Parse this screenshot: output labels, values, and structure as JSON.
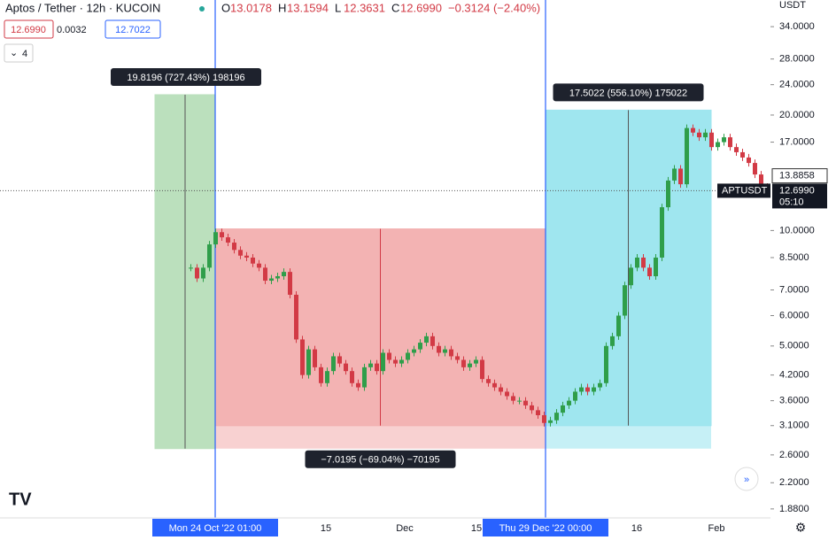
{
  "chart_data": {
    "type": "candlestick",
    "title": "Aptos / Tether · 12h · KUCOIN",
    "ohlc_legend": [
      {
        "key": "O",
        "value": "13.0178"
      },
      {
        "key": "H",
        "value": "13.1594"
      },
      {
        "key": "L",
        "value": "12.3631"
      },
      {
        "key": "C",
        "value": "12.6990"
      }
    ],
    "change": "−0.3124 (−2.40%)",
    "quote_boxes": [
      "12.6990",
      "0.0032",
      "12.7022"
    ],
    "indicator_count": "4",
    "currency": "USDT",
    "y_scale": "log",
    "ylim": [
      1.81,
      39.9
    ],
    "yticks": [
      {
        "value": 34,
        "label": "34.0000"
      },
      {
        "value": 28,
        "label": "28.0000"
      },
      {
        "value": 24,
        "label": "24.0000"
      },
      {
        "value": 20,
        "label": "20.0000"
      },
      {
        "value": 17,
        "label": "17.0000"
      },
      {
        "value": 10,
        "label": "10.0000"
      },
      {
        "value": 8.5,
        "label": "8.5000"
      },
      {
        "value": 7,
        "label": "7.0000"
      },
      {
        "value": 6,
        "label": "6.0000"
      },
      {
        "value": 5,
        "label": "5.0000"
      },
      {
        "value": 4.2,
        "label": "4.2000"
      },
      {
        "value": 3.6,
        "label": "3.6000"
      },
      {
        "value": 3.1,
        "label": "3.1000"
      },
      {
        "value": 2.6,
        "label": "2.6000"
      },
      {
        "value": 2.2,
        "label": "2.2000"
      },
      {
        "value": 1.88,
        "label": "1.8800"
      }
    ],
    "x_labels": [
      "Mon 24 Oct '22  01:00",
      "15",
      "Dec",
      "15",
      "Thu 29 Dec '22  00:00",
      "16",
      "Feb"
    ],
    "up_color": "#2f9e4a",
    "down_color": "#d23a45",
    "series": [
      {
        "name": "APTUSDT",
        "values": [
          8.0,
          7.5,
          8.0,
          9.2,
          9.9,
          9.6,
          9.3,
          8.9,
          8.6,
          8.5,
          8.2,
          8.0,
          7.4,
          7.5,
          7.6,
          7.8,
          6.8,
          5.2,
          4.2,
          4.9,
          4.4,
          4.0,
          4.3,
          4.7,
          4.5,
          4.3,
          4.0,
          3.9,
          4.4,
          4.5,
          4.3,
          4.8,
          4.6,
          4.5,
          4.6,
          4.8,
          4.9,
          5.1,
          5.3,
          5.0,
          4.8,
          4.9,
          4.7,
          4.6,
          4.4,
          4.5,
          4.6,
          4.1,
          4.0,
          3.9,
          3.8,
          3.7,
          3.6,
          3.6,
          3.5,
          3.4,
          3.3,
          3.15,
          3.2,
          3.35,
          3.5,
          3.6,
          3.8,
          3.9,
          3.8,
          3.9,
          4.0,
          5.0,
          5.3,
          6.0,
          7.2,
          8.0,
          8.5,
          8.0,
          7.6,
          8.5,
          11.5,
          13.5,
          14.5,
          13.2,
          18.5,
          18.0,
          17.5,
          18.0,
          16.5,
          17.0,
          17.5,
          16.5,
          16.0,
          15.5,
          15.0,
          14.0,
          13.0,
          12.7
        ]
      }
    ],
    "last_price": {
      "symbol": "APTUSDT",
      "value": 12.699,
      "label": "12.6990",
      "countdown": "05:10"
    },
    "mark_price": {
      "value": 13.8858,
      "label": "13.8858"
    },
    "measures": [
      {
        "label": "19.8196 (727.43%) 198196",
        "from": 2.7,
        "to": 22.6,
        "base": 2.7,
        "color": "#a5d6a7"
      },
      {
        "label": "−7.0195 (−69.04%) −70195",
        "from": 10.1,
        "to": 3.1,
        "base": 2.7,
        "color": "#ef9a9a"
      },
      {
        "label": "17.5022 (556.10%) 175022",
        "from": 3.1,
        "to": 20.6,
        "base": 2.7,
        "color": "#80deea"
      }
    ]
  }
}
